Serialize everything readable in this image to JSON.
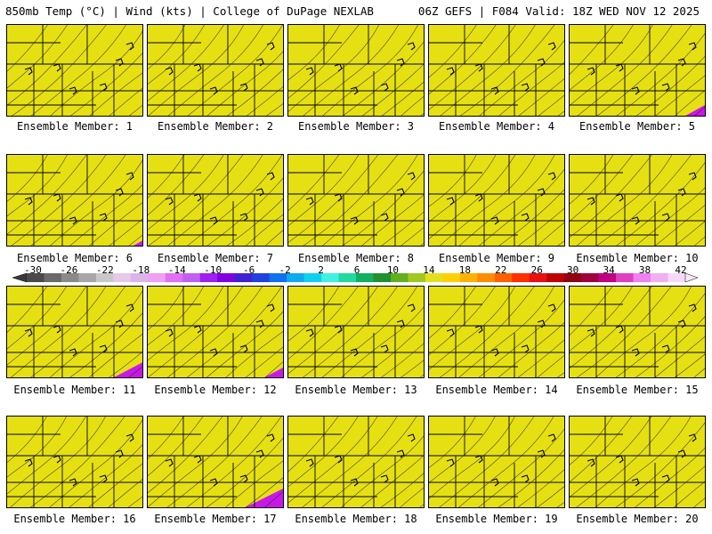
{
  "header": {
    "left_title": "850mb Temp (°C) | Wind (kts) | College of DuPage NEXLAB",
    "right_title": "06Z GEFS | F084 Valid: 18Z WED NOV 12 2025"
  },
  "members": [
    {
      "label": "Ensemble Member: 1"
    },
    {
      "label": "Ensemble Member: 2"
    },
    {
      "label": "Ensemble Member: 3"
    },
    {
      "label": "Ensemble Member: 4"
    },
    {
      "label": "Ensemble Member: 5"
    },
    {
      "label": "Ensemble Member: 6"
    },
    {
      "label": "Ensemble Member: 7"
    },
    {
      "label": "Ensemble Member: 8"
    },
    {
      "label": "Ensemble Member: 9"
    },
    {
      "label": "Ensemble Member: 10"
    },
    {
      "label": "Ensemble Member: 11"
    },
    {
      "label": "Ensemble Member: 12"
    },
    {
      "label": "Ensemble Member: 13"
    },
    {
      "label": "Ensemble Member: 14"
    },
    {
      "label": "Ensemble Member: 15"
    },
    {
      "label": "Ensemble Member: 16"
    },
    {
      "label": "Ensemble Member: 17"
    },
    {
      "label": "Ensemble Member: 18"
    },
    {
      "label": "Ensemble Member: 19"
    },
    {
      "label": "Ensemble Member: 20"
    }
  ],
  "colorbar": {
    "ticks": [
      "-30",
      "-26",
      "-22",
      "-18",
      "-14",
      "-10",
      "-6",
      "-2",
      "2",
      "6",
      "10",
      "14",
      "18",
      "22",
      "26",
      "30",
      "34",
      "38",
      "42"
    ],
    "colors": [
      "#4a4a4a",
      "#6a6a6a",
      "#8a8a8a",
      "#a8a8a8",
      "#c8c8c8",
      "#e8c8e8",
      "#dcb4e8",
      "#f0a0f0",
      "#e070f0",
      "#c060f0",
      "#a020f0",
      "#8000e0",
      "#4020d0",
      "#2040e0",
      "#1070f0",
      "#10a8f0",
      "#10d0f0",
      "#40f0e0",
      "#20d8a0",
      "#10b060",
      "#209030",
      "#60b020",
      "#a0c820",
      "#e0e020",
      "#ffd000",
      "#ffb000",
      "#ff8c00",
      "#ff6000",
      "#ff3000",
      "#e81010",
      "#c00000",
      "#900010",
      "#a00040",
      "#c00080",
      "#e040c0",
      "#f080f0",
      "#f0b0f0",
      "#f8d8f8"
    ]
  },
  "palette": {
    "magenta": "#c818e8",
    "purple": "#8020e8",
    "blue": "#2050e8",
    "lightblue": "#10a8f0",
    "cyan": "#10e0f0",
    "teal": "#10c8a0",
    "green": "#10b040",
    "ltgreen": "#80c020",
    "yellow": "#e8e010"
  }
}
